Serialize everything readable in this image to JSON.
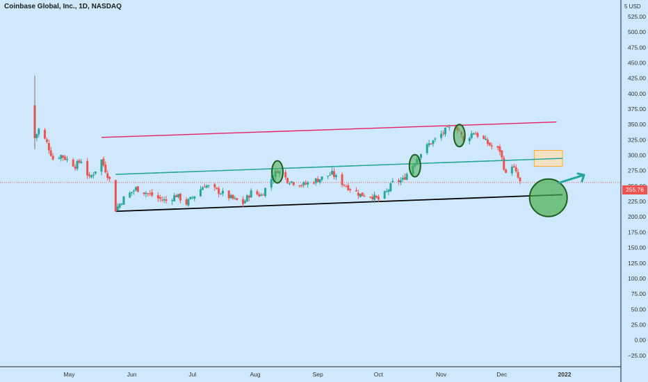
{
  "header": {
    "title": "Coinbase Global, Inc., 1D, NASDAQ",
    "unit": "5 USD"
  },
  "last_price": {
    "label": "255.76",
    "value": 255.76
  },
  "colors": {
    "background": "#cfe8fb",
    "up": "#26a69a",
    "down": "#ef5350",
    "resistance_line": "#e91e63",
    "channel_line": "#26a69a",
    "support_line": "#000000",
    "target_box_fill": "#ffe0b2",
    "target_box_stroke": "#ffa726",
    "marker_fill": "#4caf50",
    "marker_stroke": "#1b5e20"
  },
  "chart_data": {
    "type": "candlestick",
    "title": "Coinbase Global, Inc., 1D, NASDAQ",
    "y_axis_side": "right",
    "ylim": [
      -25,
      550
    ],
    "y_ticks": [
      "525.00",
      "500.00",
      "475.00",
      "450.00",
      "425.00",
      "400.00",
      "375.00",
      "350.00",
      "325.00",
      "300.00",
      "275.00",
      "250.00",
      "225.00",
      "200.00",
      "175.00",
      "150.00",
      "125.00",
      "100.00",
      "75.00",
      "50.00",
      "25.00",
      "0.00",
      "−25.00"
    ],
    "x_ticks": [
      {
        "label": "May",
        "date": "2021-05-01"
      },
      {
        "label": "Jun",
        "date": "2021-06-01"
      },
      {
        "label": "Jul",
        "date": "2021-07-01"
      },
      {
        "label": "Aug",
        "date": "2021-08-01"
      },
      {
        "label": "Sep",
        "date": "2021-09-01"
      },
      {
        "label": "Oct",
        "date": "2021-10-01"
      },
      {
        "label": "Nov",
        "date": "2021-11-01"
      },
      {
        "label": "Dec",
        "date": "2021-12-01"
      },
      {
        "label": "2022",
        "date": "2022-01-01",
        "bold": true
      }
    ],
    "close_path": [
      [
        "2021-04-14",
        328
      ],
      [
        "2021-04-16",
        342
      ],
      [
        "2021-04-20",
        320
      ],
      [
        "2021-04-23",
        294
      ],
      [
        "2021-04-27",
        300
      ],
      [
        "2021-04-30",
        293
      ],
      [
        "2021-05-04",
        283
      ],
      [
        "2021-05-07",
        292
      ],
      [
        "2021-05-11",
        262
      ],
      [
        "2021-05-14",
        276
      ],
      [
        "2021-05-17",
        292
      ],
      [
        "2021-05-21",
        260
      ],
      [
        "2021-05-24",
        212
      ],
      [
        "2021-05-28",
        230
      ],
      [
        "2021-06-03",
        246
      ],
      [
        "2021-06-09",
        238
      ],
      [
        "2021-06-14",
        230
      ],
      [
        "2021-06-18",
        226
      ],
      [
        "2021-06-23",
        235
      ],
      [
        "2021-06-28",
        222
      ],
      [
        "2021-07-02",
        235
      ],
      [
        "2021-07-07",
        252
      ],
      [
        "2021-07-12",
        244
      ],
      [
        "2021-07-16",
        238
      ],
      [
        "2021-07-21",
        229
      ],
      [
        "2021-07-26",
        222
      ],
      [
        "2021-07-30",
        240
      ],
      [
        "2021-08-04",
        235
      ],
      [
        "2021-08-09",
        262
      ],
      [
        "2021-08-12",
        276
      ],
      [
        "2021-08-17",
        260
      ],
      [
        "2021-08-20",
        256
      ],
      [
        "2021-08-25",
        252
      ],
      [
        "2021-08-30",
        258
      ],
      [
        "2021-09-02",
        262
      ],
      [
        "2021-09-08",
        270
      ],
      [
        "2021-09-13",
        255
      ],
      [
        "2021-09-17",
        246
      ],
      [
        "2021-09-22",
        236
      ],
      [
        "2021-09-27",
        235
      ],
      [
        "2021-10-01",
        228
      ],
      [
        "2021-10-05",
        240
      ],
      [
        "2021-10-08",
        255
      ],
      [
        "2021-10-13",
        260
      ],
      [
        "2021-10-18",
        285
      ],
      [
        "2021-10-21",
        300
      ],
      [
        "2021-10-26",
        318
      ],
      [
        "2021-10-29",
        325
      ],
      [
        "2021-11-03",
        340
      ],
      [
        "2021-11-08",
        348
      ],
      [
        "2021-11-10",
        340
      ],
      [
        "2021-11-12",
        322
      ],
      [
        "2021-11-17",
        338
      ],
      [
        "2021-11-22",
        325
      ],
      [
        "2021-11-26",
        314
      ],
      [
        "2021-11-30",
        308
      ],
      [
        "2021-12-03",
        268
      ],
      [
        "2021-12-06",
        285
      ],
      [
        "2021-12-10",
        255.76
      ]
    ],
    "trend_lines": [
      {
        "name": "resistance",
        "color": "#e91e63",
        "from": [
          "2021-05-17",
          329
        ],
        "to": [
          "2021-12-28",
          354
        ]
      },
      {
        "name": "channel",
        "color": "#26a69a",
        "from": [
          "2021-05-24",
          269
        ],
        "to": [
          "2021-12-31",
          295
        ]
      },
      {
        "name": "support",
        "color": "#000000",
        "from": [
          "2021-05-24",
          209
        ],
        "to": [
          "2021-12-31",
          236
        ]
      }
    ],
    "target_box": {
      "from": [
        "2021-12-17",
        282
      ],
      "to": [
        "2021-12-31",
        308
      ]
    },
    "markers": [
      {
        "date": "2021-08-12",
        "price": 273,
        "kind": "ellipse"
      },
      {
        "date": "2021-10-19",
        "price": 283,
        "kind": "ellipse"
      },
      {
        "date": "2021-11-10",
        "price": 332,
        "kind": "ellipse"
      },
      {
        "date": "2021-12-24",
        "price": 231,
        "kind": "circle"
      }
    ],
    "arrow": {
      "from": [
        "2021-12-29",
        255
      ],
      "to": [
        "2022-01-01",
        268
      ]
    },
    "last_price": 255.76
  }
}
